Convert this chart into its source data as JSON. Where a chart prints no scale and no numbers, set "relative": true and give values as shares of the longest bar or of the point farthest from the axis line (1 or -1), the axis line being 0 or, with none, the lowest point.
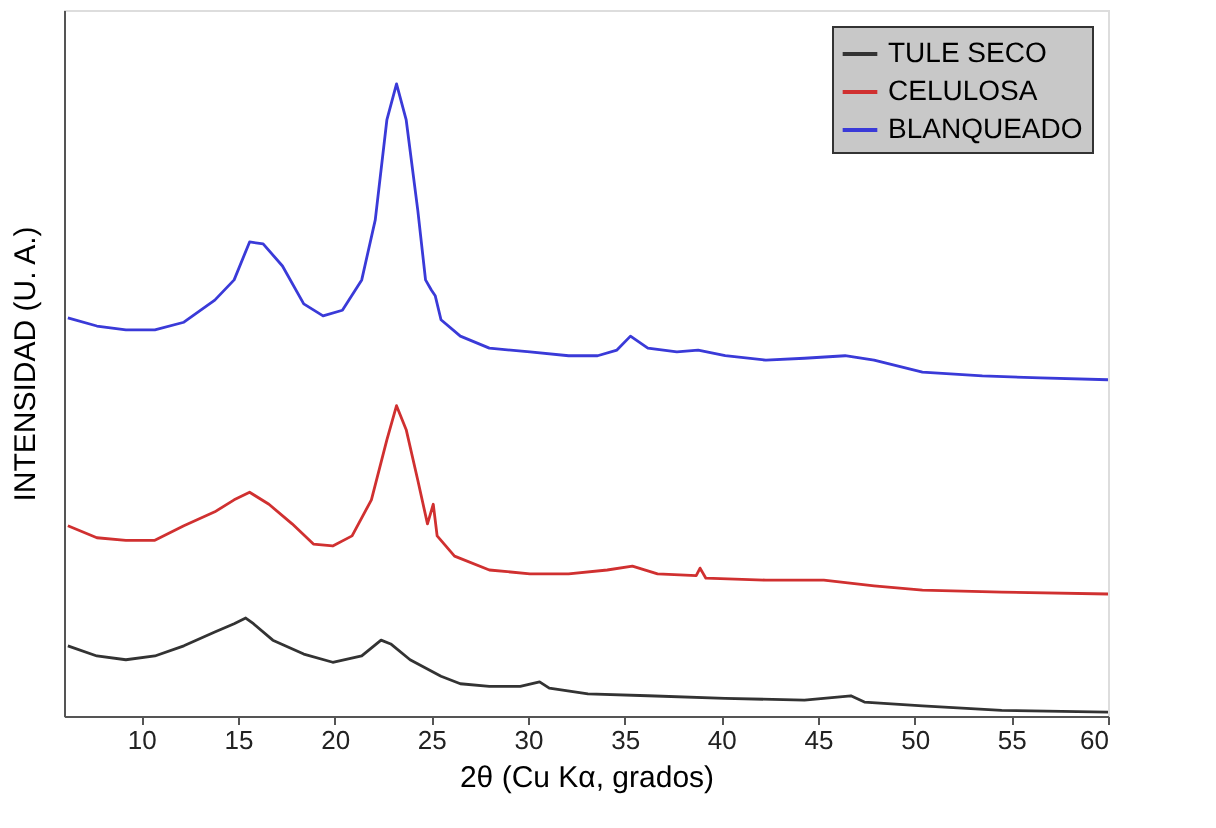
{
  "chart_data": {
    "type": "line",
    "relative": true,
    "xlabel": "2θ (Cu Kα, grados)",
    "ylabel": "INTENSIDAD (U. A.)",
    "xlim": [
      6,
      60
    ],
    "xticks": [
      10,
      15,
      20,
      25,
      30,
      35,
      40,
      45,
      50,
      55,
      60
    ],
    "tick_labels": "x",
    "grid": false,
    "legend": "top right",
    "marker": "none",
    "line_style": "solid",
    "series": [
      {
        "name": "TULE SECO",
        "color": "#333333",
        "x": [
          6.2,
          7.7,
          9.2,
          10.7,
          12.2,
          13.8,
          14.8,
          15.4,
          15.8,
          16.8,
          18.4,
          19.9,
          21.4,
          22.4,
          22.9,
          23.9,
          25.5,
          26.5,
          28.0,
          29.6,
          30.6,
          31.1,
          33.1,
          36.2,
          40.2,
          44.3,
          46.7,
          47.4,
          50.4,
          54.5,
          60
        ],
        "values": [
          0.111,
          0.095,
          0.089,
          0.095,
          0.111,
          0.133,
          0.146,
          0.155,
          0.146,
          0.12,
          0.098,
          0.085,
          0.095,
          0.12,
          0.114,
          0.089,
          0.063,
          0.051,
          0.047,
          0.047,
          0.054,
          0.044,
          0.035,
          0.032,
          0.028,
          0.025,
          0.032,
          0.022,
          0.016,
          0.009,
          0.006
        ]
      },
      {
        "name": "CELULOSA",
        "color": "#d03030",
        "x": [
          6.2,
          7.7,
          9.2,
          10.7,
          12.2,
          13.8,
          14.8,
          15.6,
          16.6,
          17.8,
          18.9,
          19.9,
          20.9,
          21.9,
          22.7,
          23.2,
          23.7,
          24.3,
          24.8,
          25.1,
          25.3,
          26.2,
          28.0,
          30.1,
          32.1,
          34.1,
          35.4,
          36.7,
          38.7,
          38.9,
          39.2,
          42.3,
          45.3,
          47.9,
          50.4,
          54.5,
          60
        ],
        "values": [
          0.301,
          0.282,
          0.278,
          0.278,
          0.301,
          0.323,
          0.342,
          0.354,
          0.335,
          0.304,
          0.272,
          0.269,
          0.285,
          0.342,
          0.437,
          0.491,
          0.453,
          0.373,
          0.304,
          0.335,
          0.285,
          0.253,
          0.231,
          0.225,
          0.225,
          0.231,
          0.237,
          0.225,
          0.222,
          0.234,
          0.218,
          0.215,
          0.215,
          0.206,
          0.199,
          0.196,
          0.193
        ]
      },
      {
        "name": "BLANQUEADO",
        "color": "#3a3ad8",
        "x": [
          6.2,
          7.7,
          9.2,
          10.7,
          12.2,
          13.8,
          14.8,
          15.6,
          16.3,
          17.3,
          18.4,
          19.4,
          20.4,
          21.4,
          22.1,
          22.7,
          23.2,
          23.7,
          24.3,
          24.7,
          25.0,
          25.2,
          25.5,
          26.5,
          28.0,
          30.1,
          32.1,
          33.6,
          34.6,
          35.3,
          36.2,
          37.7,
          38.8,
          40.2,
          42.3,
          44.3,
          46.4,
          47.9,
          50.4,
          53.5,
          56.5,
          60
        ],
        "values": [
          0.63,
          0.617,
          0.611,
          0.611,
          0.623,
          0.658,
          0.69,
          0.75,
          0.747,
          0.712,
          0.652,
          0.633,
          0.642,
          0.69,
          0.785,
          0.943,
          1.0,
          0.943,
          0.8,
          0.69,
          0.674,
          0.665,
          0.627,
          0.601,
          0.582,
          0.576,
          0.57,
          0.57,
          0.579,
          0.601,
          0.582,
          0.576,
          0.579,
          0.57,
          0.563,
          0.566,
          0.57,
          0.563,
          0.544,
          0.538,
          0.535,
          0.532
        ]
      }
    ]
  }
}
